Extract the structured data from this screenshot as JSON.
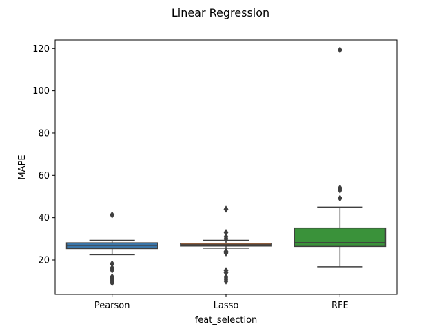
{
  "chart_data": {
    "type": "box",
    "title": "Linear Regression",
    "xlabel": "feat_selection",
    "ylabel": "MAPE",
    "ylim": [
      3.7,
      124
    ],
    "yticks": [
      20,
      40,
      60,
      80,
      100,
      120
    ],
    "categories": [
      "Pearson",
      "Lasso",
      "RFE"
    ],
    "colors": [
      "#3a75a8",
      "#e07b39",
      "#3a923a"
    ],
    "median_color": "#3f3f3f",
    "boxes": [
      {
        "category": "Pearson",
        "whisker_low": 22.5,
        "q1": 25.4,
        "median": 26.9,
        "q3": 28.1,
        "whisker_high": 29.3,
        "outliers": [
          41.3,
          18.2,
          16.2,
          15.2,
          12.0,
          11.2,
          10.2,
          9.2
        ]
      },
      {
        "category": "Lasso",
        "whisker_low": 25.6,
        "q1": 26.6,
        "median": 27.2,
        "q3": 27.9,
        "whisker_high": 29.3,
        "outliers": [
          44.0,
          33.0,
          31.0,
          30.0,
          24.0,
          23.3,
          15.0,
          14.0,
          12.0,
          11.0,
          10.0
        ]
      },
      {
        "category": "RFE",
        "whisker_low": 16.8,
        "q1": 26.4,
        "median": 28.2,
        "q3": 35.1,
        "whisker_high": 45.0,
        "outliers": [
          119.3,
          54.0,
          53.0,
          49.2
        ]
      }
    ]
  }
}
